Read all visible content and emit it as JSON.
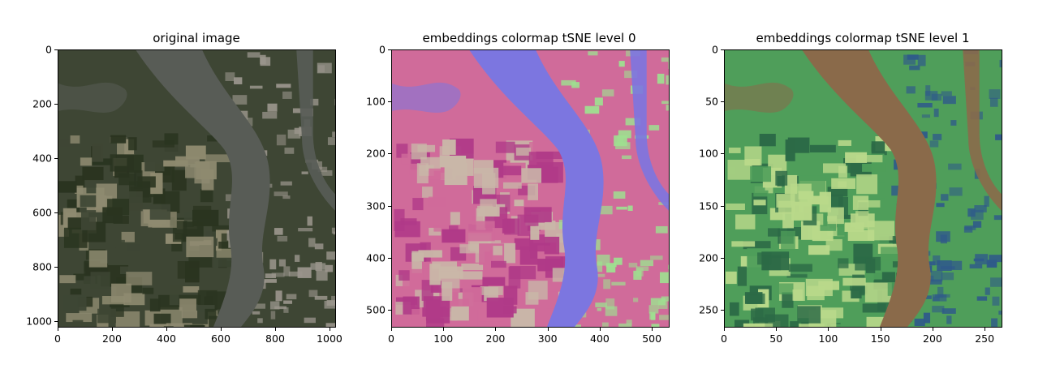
{
  "panels": [
    {
      "title": "original image",
      "image_kind": "natural-rgb",
      "x_ticks": [
        "0",
        "200",
        "400",
        "600",
        "800",
        "1000"
      ],
      "x_tick_values": [
        0,
        200,
        400,
        600,
        800,
        1000
      ],
      "y_ticks": [
        "0",
        "200",
        "400",
        "600",
        "800",
        "1000"
      ],
      "y_tick_values": [
        0,
        200,
        400,
        600,
        800,
        1000
      ],
      "extent": 1024,
      "colors": {
        "land": "#3e4634",
        "water": "#585c56",
        "field_dark": "#2a3420",
        "field_light": "#8e8a70",
        "urban": "#9a958c"
      }
    },
    {
      "title": "embeddings colormap tSNE level 0",
      "image_kind": "embedding-colormap",
      "x_ticks": [
        "0",
        "100",
        "200",
        "300",
        "400",
        "500"
      ],
      "x_tick_values": [
        0,
        100,
        200,
        300,
        400,
        500
      ],
      "y_ticks": [
        "0",
        "100",
        "200",
        "300",
        "400",
        "500"
      ],
      "y_tick_values": [
        0,
        100,
        200,
        300,
        400,
        500
      ],
      "extent": 534,
      "colors": {
        "land": "#d06b9a",
        "water": "#7c76e0",
        "field_dark": "#b03a88",
        "field_light": "#c9b7a8",
        "urban": "#9ee090"
      }
    },
    {
      "title": "embeddings colormap tSNE level 1",
      "image_kind": "embedding-colormap",
      "x_ticks": [
        "0",
        "50",
        "100",
        "150",
        "200",
        "250"
      ],
      "x_tick_values": [
        0,
        50,
        100,
        150,
        200,
        250
      ],
      "y_ticks": [
        "0",
        "50",
        "100",
        "150",
        "200",
        "250"
      ],
      "y_tick_values": [
        0,
        50,
        100,
        150,
        200,
        250
      ],
      "extent": 267,
      "colors": {
        "land": "#4f9e5a",
        "water": "#8a6a4a",
        "field_dark": "#2c6a46",
        "field_light": "#b9d98a",
        "urban": "#2f5a8a"
      }
    }
  ]
}
